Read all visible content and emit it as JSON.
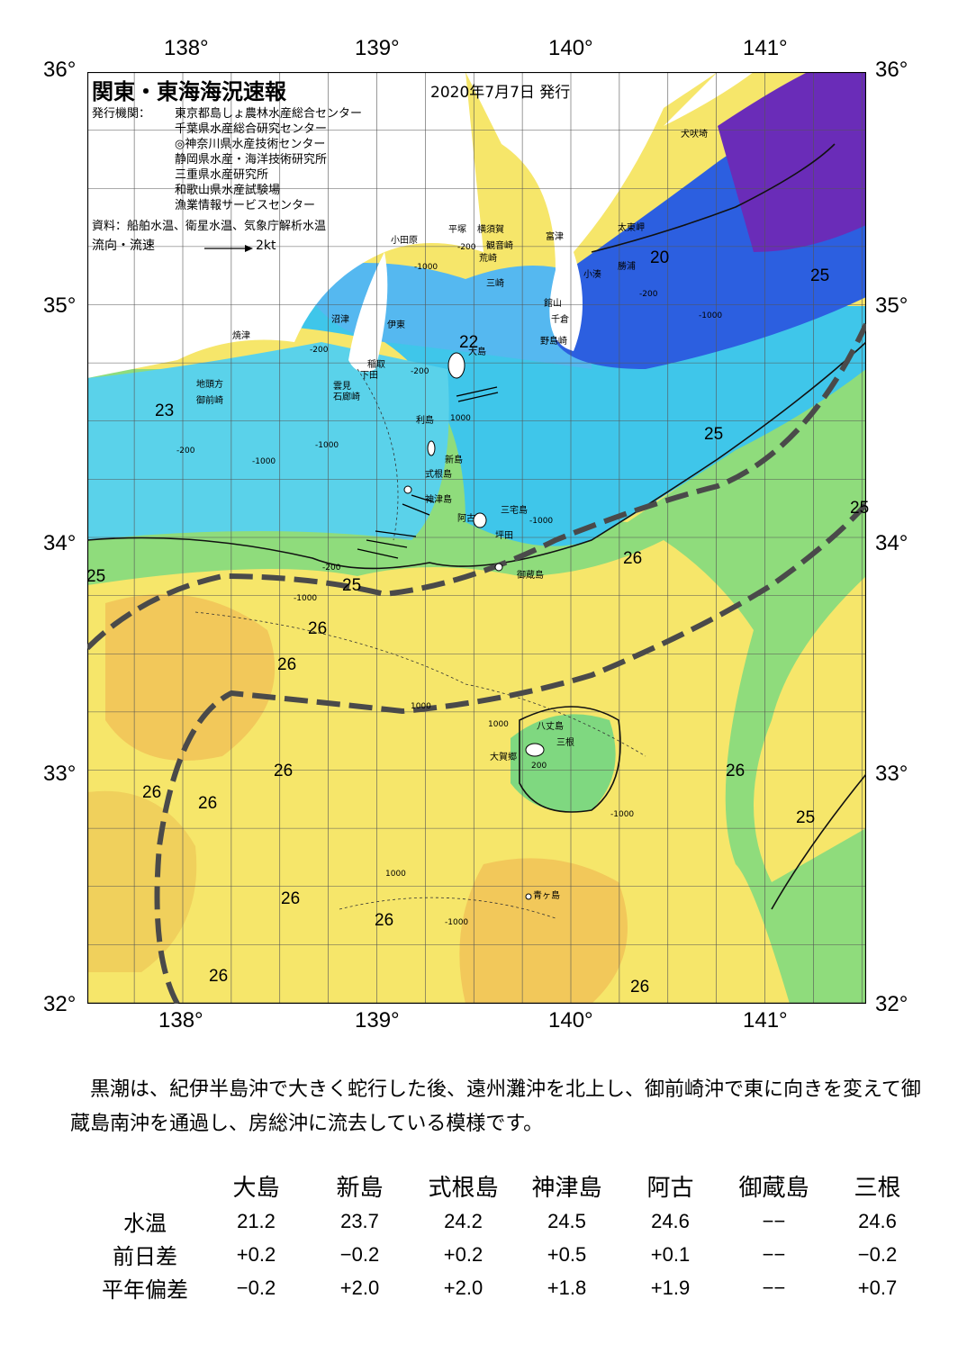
{
  "map": {
    "title": "関東・東海海況速報",
    "issued": "2020年7月7日 発行",
    "issuer_label": "発行機関：",
    "issuers": [
      "東京都島しょ農林水産総合センター",
      "千葉県水産総合研究センター",
      "◎神奈川県水産技術センター",
      "静岡県水産・海洋技術研究所",
      "三重県水産研究所",
      "和歌山県水産試験場",
      "漁業情報サービスセンター"
    ],
    "source": "資料：船舶水温、衛星水温、気象庁解析水温",
    "flow_label": "流向・流速",
    "flow_scale": "2kt",
    "lon_labels": [
      "138°",
      "139°",
      "140°",
      "141°"
    ],
    "lat_labels": [
      "36°",
      "35°",
      "34°",
      "33°",
      "32°"
    ],
    "places": [
      {
        "name": "犬吠埼"
      },
      {
        "name": "太東岬"
      },
      {
        "name": "勝浦"
      },
      {
        "name": "小湊"
      },
      {
        "name": "富津"
      },
      {
        "name": "横須賀"
      },
      {
        "name": "平塚"
      },
      {
        "name": "小田原"
      },
      {
        "name": "観音崎"
      },
      {
        "name": "荒崎"
      },
      {
        "name": "三崎"
      },
      {
        "name": "館山"
      },
      {
        "name": "千倉"
      },
      {
        "name": "野島崎"
      },
      {
        "name": "沼津"
      },
      {
        "name": "伊東"
      },
      {
        "name": "焼津"
      },
      {
        "name": "大島"
      },
      {
        "name": "稲取"
      },
      {
        "name": "下田"
      },
      {
        "name": "雲見"
      },
      {
        "name": "石廊崎"
      },
      {
        "name": "地頭方"
      },
      {
        "name": "御前崎"
      },
      {
        "name": "利島"
      },
      {
        "name": "新島"
      },
      {
        "name": "式根島"
      },
      {
        "name": "神津島"
      },
      {
        "name": "三宅島"
      },
      {
        "name": "阿古"
      },
      {
        "name": "坪田"
      },
      {
        "name": "御蔵島"
      },
      {
        "name": "八丈島"
      },
      {
        "name": "三根"
      },
      {
        "name": "大賀郷"
      },
      {
        "name": "青ヶ島"
      }
    ],
    "isotherms": [
      {
        "value": "20"
      },
      {
        "value": "22"
      },
      {
        "value": "23"
      },
      {
        "value": "25"
      },
      {
        "value": "25"
      },
      {
        "value": "25"
      },
      {
        "value": "25"
      },
      {
        "value": "25"
      },
      {
        "value": "25"
      },
      {
        "value": "26"
      },
      {
        "value": "26"
      },
      {
        "value": "26"
      },
      {
        "value": "26"
      },
      {
        "value": "26"
      },
      {
        "value": "26"
      },
      {
        "value": "26"
      },
      {
        "value": "26"
      },
      {
        "value": "26"
      },
      {
        "value": "26"
      },
      {
        "value": "26"
      }
    ],
    "depths": [
      "-200",
      "-200",
      "-200",
      "-200",
      "-200",
      "-1000",
      "-1000",
      "-1000",
      "1000",
      "1000",
      "-1000",
      "1000",
      "-1000",
      "-1000",
      "200",
      "-200",
      "-1000",
      "1000",
      "-1000"
    ],
    "colors": {
      "warm": "#f8e070",
      "mid": "#7fd880",
      "cool": "#3fa8ef",
      "cold": "#2a4fd8",
      "coldest": "#7a1aa8",
      "kuroshio_axis": "#4a4a4a"
    }
  },
  "description": "黒潮は、紀伊半島沖で大きく蛇行した後、遠州灘沖を北上し、御前崎沖で東に向きを変えて御蔵島南沖を通過し、房総沖に流去している模様です。",
  "table": {
    "columns": [
      "大島",
      "新島",
      "式根島",
      "神津島",
      "阿古",
      "御蔵島",
      "三根"
    ],
    "rows": [
      {
        "label": "水温",
        "values": [
          "21.2",
          "23.7",
          "24.2",
          "24.5",
          "24.6",
          "−−",
          "24.6"
        ]
      },
      {
        "label": "前日差",
        "values": [
          "+0.2",
          "−0.2",
          "+0.2",
          "+0.5",
          "+0.1",
          "−−",
          "−0.2"
        ]
      },
      {
        "label": "平年偏差",
        "values": [
          "−0.2",
          "+2.0",
          "+2.0",
          "+1.8",
          "+1.9",
          "−−",
          "+0.7"
        ]
      }
    ]
  }
}
